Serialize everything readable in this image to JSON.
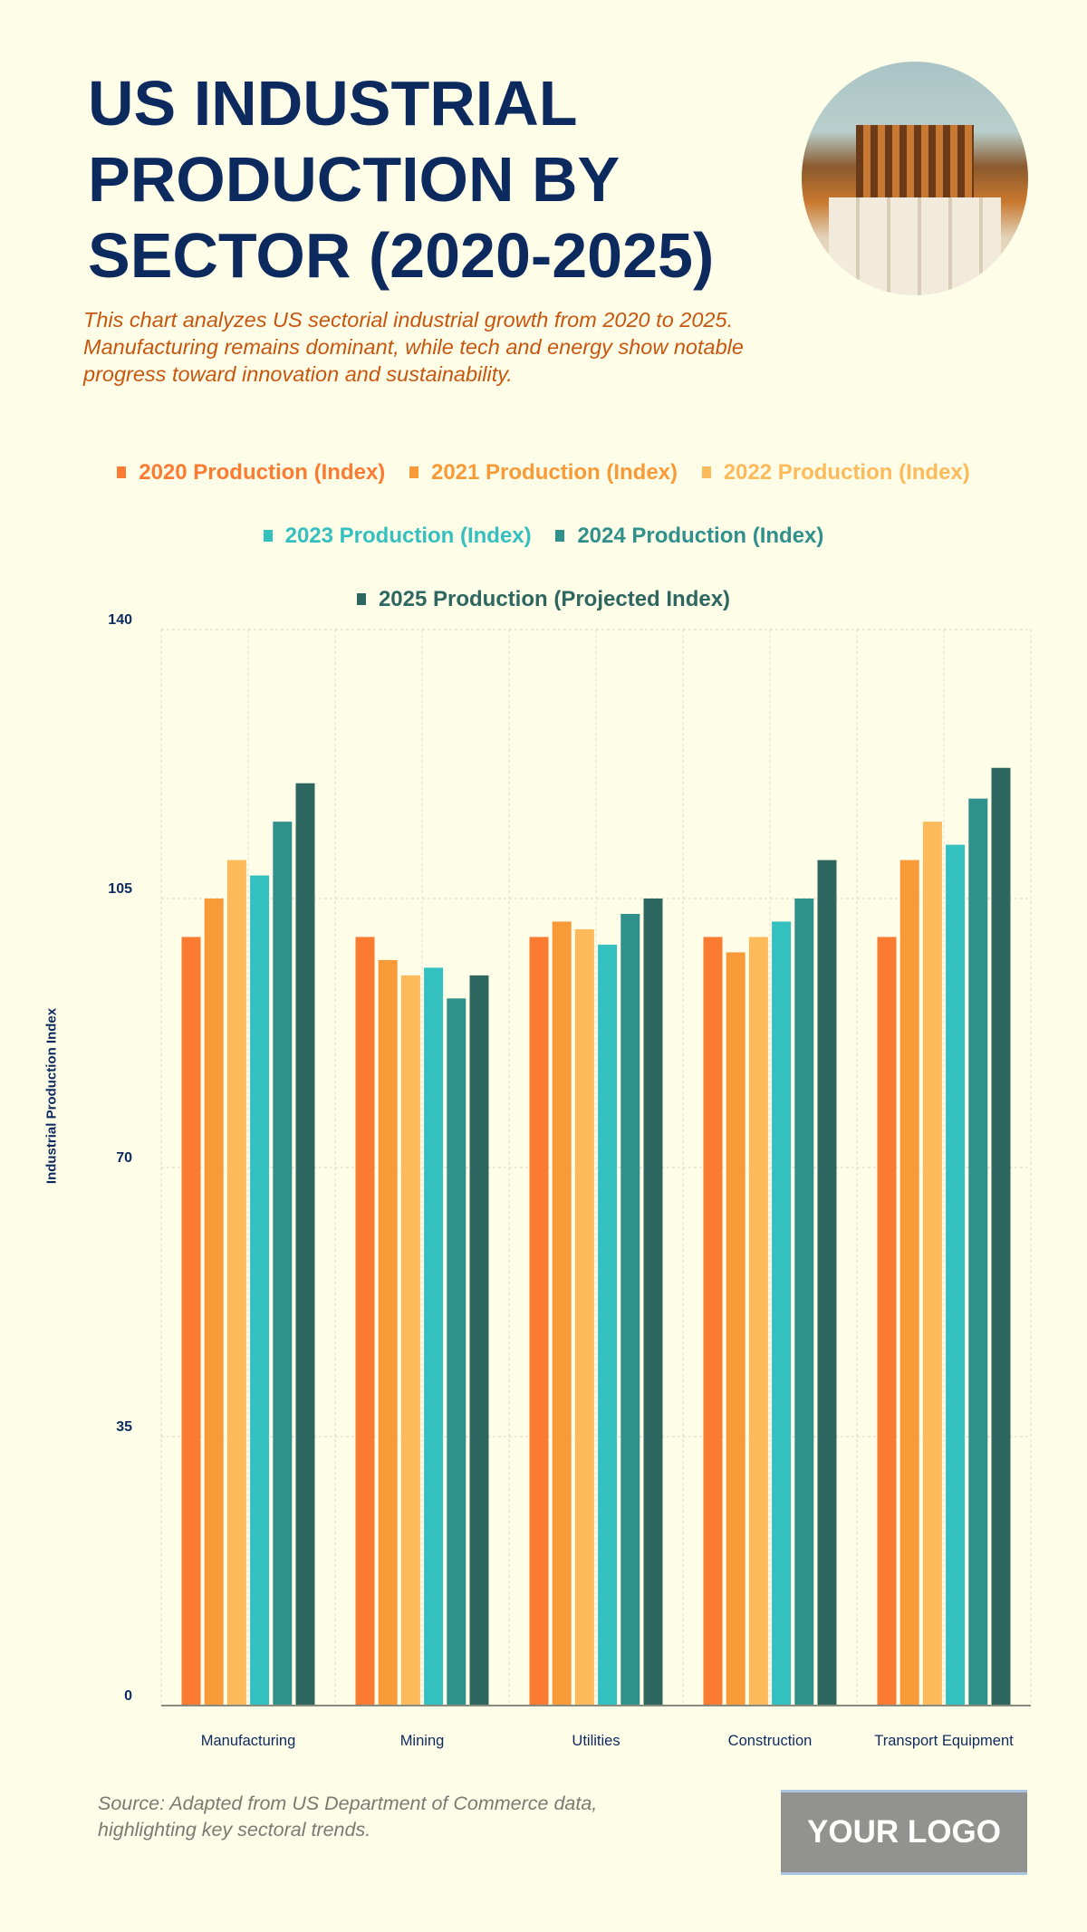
{
  "header": {
    "title": "US INDUSTRIAL PRODUCTION BY SECTOR (2020-2025)",
    "subtitle": "This chart analyzes US sectorial industrial growth from 2020 to 2025. Manufacturing remains dominant, while tech and energy show notable progress toward innovation and sustainability."
  },
  "footer": {
    "source": "Source: Adapted from US Department of Commerce data, highlighting key sectoral trends.",
    "logo": "YOUR LOGO"
  },
  "chart_data": {
    "type": "bar",
    "ylabel": "Industrial Production Index",
    "xlabel": "",
    "ylim": [
      0,
      140
    ],
    "yticks": [
      0,
      35,
      70,
      105,
      140
    ],
    "grid": true,
    "legend_position": "top",
    "categories": [
      "Manufacturing",
      "Mining",
      "Utilities",
      "Construction",
      "Transport Equipment"
    ],
    "series": [
      {
        "name": "2020 Production (Index)",
        "color": "#fb7b32",
        "values": [
          100,
          100,
          100,
          100,
          100
        ]
      },
      {
        "name": "2021 Production (Index)",
        "color": "#f99a38",
        "values": [
          105,
          97,
          102,
          98,
          110
        ]
      },
      {
        "name": "2022 Production (Index)",
        "color": "#fdba5a",
        "values": [
          110,
          95,
          101,
          100,
          115
        ]
      },
      {
        "name": "2023 Production (Index)",
        "color": "#35c0c0",
        "values": [
          108,
          96,
          99,
          102,
          112
        ]
      },
      {
        "name": "2024 Production (Index)",
        "color": "#30908c",
        "values": [
          115,
          92,
          103,
          105,
          118
        ]
      },
      {
        "name": "2025 Production (Projected Index)",
        "color": "#2e6660",
        "values": [
          120,
          95,
          105,
          110,
          122
        ]
      }
    ]
  }
}
